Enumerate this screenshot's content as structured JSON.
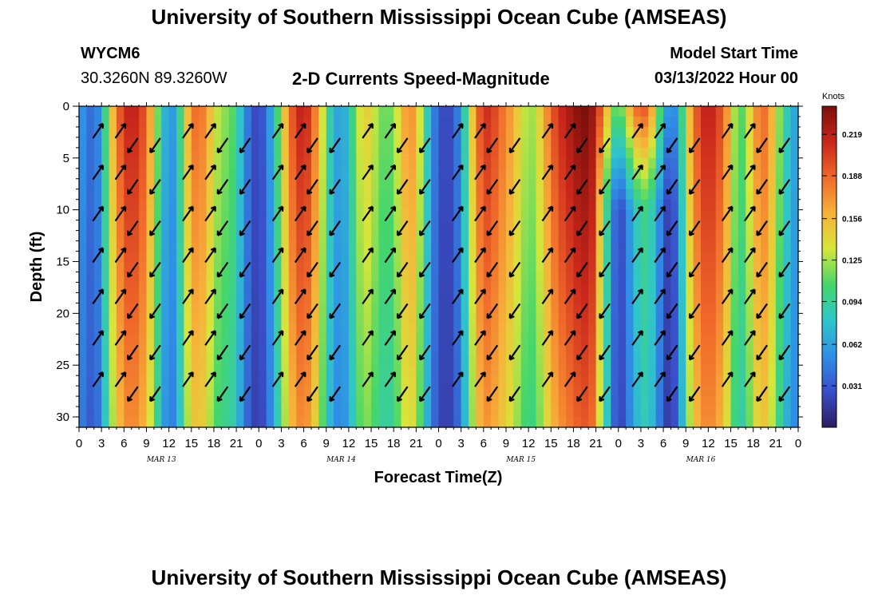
{
  "header": {
    "title": "University of Southern Mississippi Ocean Cube (AMSEAS)",
    "station": "WYCM6",
    "coords": "30.3260N  89.3260W",
    "subtitle": "2-D Currents Speed-Magnitude",
    "model_label": "Model Start Time",
    "model_time": "03/13/2022 Hour 00"
  },
  "footer": {
    "title": "University of Southern Mississippi Ocean Cube (AMSEAS)"
  },
  "colors": {
    "scale": [
      "#2b1b5e",
      "#3a4fc9",
      "#2f8fe6",
      "#2fc6c9",
      "#45d66b",
      "#d6e63a",
      "#f7b13a",
      "#f06a2a",
      "#c8261b",
      "#7a0f0a"
    ]
  },
  "chart_data": {
    "type": "heatmap",
    "title": "2-D Currents Speed-Magnitude",
    "xlabel": "Forecast Time(Z)",
    "ylabel": "Depth (ft)",
    "colorbar_label": "Knots",
    "colorbar_ticks": [
      "0.219",
      "0.188",
      "0.156",
      "0.125",
      "0.094",
      "0.062",
      "0.031"
    ],
    "colorbar_range": [
      0.0,
      0.24
    ],
    "x_range_hours": [
      0,
      96
    ],
    "x_ticks": [
      "0",
      "3",
      "6",
      "9",
      "12",
      "15",
      "18",
      "21",
      "0",
      "3",
      "6",
      "9",
      "12",
      "15",
      "18",
      "21",
      "0",
      "3",
      "6",
      "9",
      "12",
      "15",
      "18",
      "21",
      "0",
      "3",
      "6",
      "9",
      "12",
      "15",
      "18",
      "21",
      "0"
    ],
    "date_labels": [
      {
        "label": "MAR 13",
        "hour": 11
      },
      {
        "label": "MAR 14",
        "hour": 35
      },
      {
        "label": "MAR 15",
        "hour": 59
      },
      {
        "label": "MAR 16",
        "hour": 83
      }
    ],
    "y_range_ft": [
      0,
      31
    ],
    "y_ticks": [
      0,
      5,
      10,
      15,
      20,
      25,
      30
    ],
    "surface_speed_by_hour": [
      0.06,
      0.05,
      0.03,
      0.07,
      0.13,
      0.18,
      0.21,
      0.22,
      0.21,
      0.19,
      0.14,
      0.09,
      0.05,
      0.07,
      0.13,
      0.18,
      0.19,
      0.17,
      0.14,
      0.12,
      0.12,
      0.1,
      0.06,
      0.03,
      0.02,
      0.04,
      0.08,
      0.13,
      0.18,
      0.21,
      0.22,
      0.2,
      0.16,
      0.11,
      0.07,
      0.06,
      0.08,
      0.12,
      0.15,
      0.14,
      0.12,
      0.11,
      0.12,
      0.15,
      0.18,
      0.16,
      0.11,
      0.06,
      0.03,
      0.02,
      0.03,
      0.06,
      0.12,
      0.18,
      0.21,
      0.21,
      0.19,
      0.18,
      0.16,
      0.14,
      0.12,
      0.13,
      0.16,
      0.19,
      0.21,
      0.22,
      0.23,
      0.24,
      0.24,
      0.22,
      0.18,
      0.13,
      0.1,
      0.14,
      0.18,
      0.2,
      0.19,
      0.14,
      0.08,
      0.04,
      0.07,
      0.13,
      0.18,
      0.21,
      0.22,
      0.21,
      0.19,
      0.15,
      0.1,
      0.12,
      0.16,
      0.19,
      0.18,
      0.14,
      0.1,
      0.07,
      0.06
    ]
  }
}
